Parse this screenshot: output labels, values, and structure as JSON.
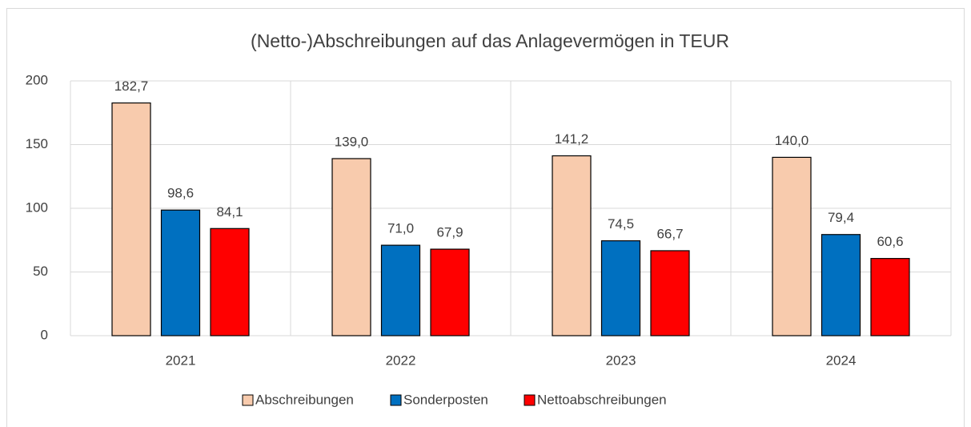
{
  "chart_data": {
    "type": "bar",
    "title": "(Netto-)Abschreibungen auf das Anlagevermögen in TEUR",
    "categories": [
      "2021",
      "2022",
      "2023",
      "2024"
    ],
    "series": [
      {
        "name": "Abschreibungen",
        "color": "#f8cbad",
        "values": [
          182.7,
          139.0,
          141.2,
          140.0
        ],
        "value_labels": [
          "182,7",
          "139,0",
          "141,2",
          "140,0"
        ]
      },
      {
        "name": "Sonderposten",
        "color": "#0070c0",
        "values": [
          98.6,
          71.0,
          74.5,
          79.4
        ],
        "value_labels": [
          "98,6",
          "71,0",
          "74,5",
          "79,4"
        ]
      },
      {
        "name": "Nettoabschreibungen",
        "color": "#ff0000",
        "values": [
          84.1,
          67.9,
          66.7,
          60.6
        ],
        "value_labels": [
          "84,1",
          "67,9",
          "66,7",
          "60,6"
        ]
      }
    ],
    "ylim": [
      0,
      200
    ],
    "yticks": [
      0,
      50,
      100,
      150,
      200
    ],
    "grid": true,
    "legend": "bottom"
  }
}
